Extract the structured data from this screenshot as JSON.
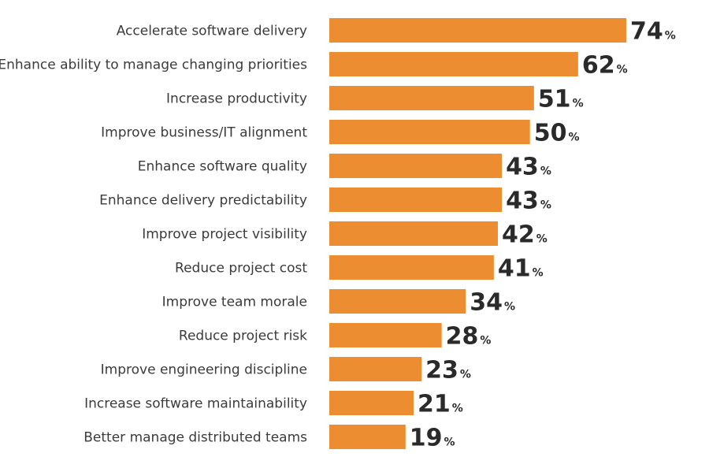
{
  "chart_data": {
    "type": "bar",
    "orientation": "horizontal",
    "categories": [
      "Accelerate software delivery",
      "Enhance ability to manage changing priorities",
      "Increase productivity",
      "Improve business/IT alignment",
      "Enhance software quality",
      "Enhance delivery predictability",
      "Improve project visibility",
      "Reduce project cost",
      "Improve team morale",
      "Reduce project risk",
      "Improve engineering discipline",
      "Increase software maintainability",
      "Better manage distributed teams"
    ],
    "values": [
      74,
      62,
      51,
      50,
      43,
      43,
      42,
      41,
      34,
      28,
      23,
      21,
      19
    ],
    "value_suffix": "%",
    "title": "",
    "xlabel": "",
    "ylabel": "",
    "xlim": [
      0,
      74
    ],
    "grid": false,
    "legend": "none",
    "colors": {
      "bar": "#ec8d31",
      "label": "#3b3b3b",
      "value": "#2a2a2a"
    }
  }
}
